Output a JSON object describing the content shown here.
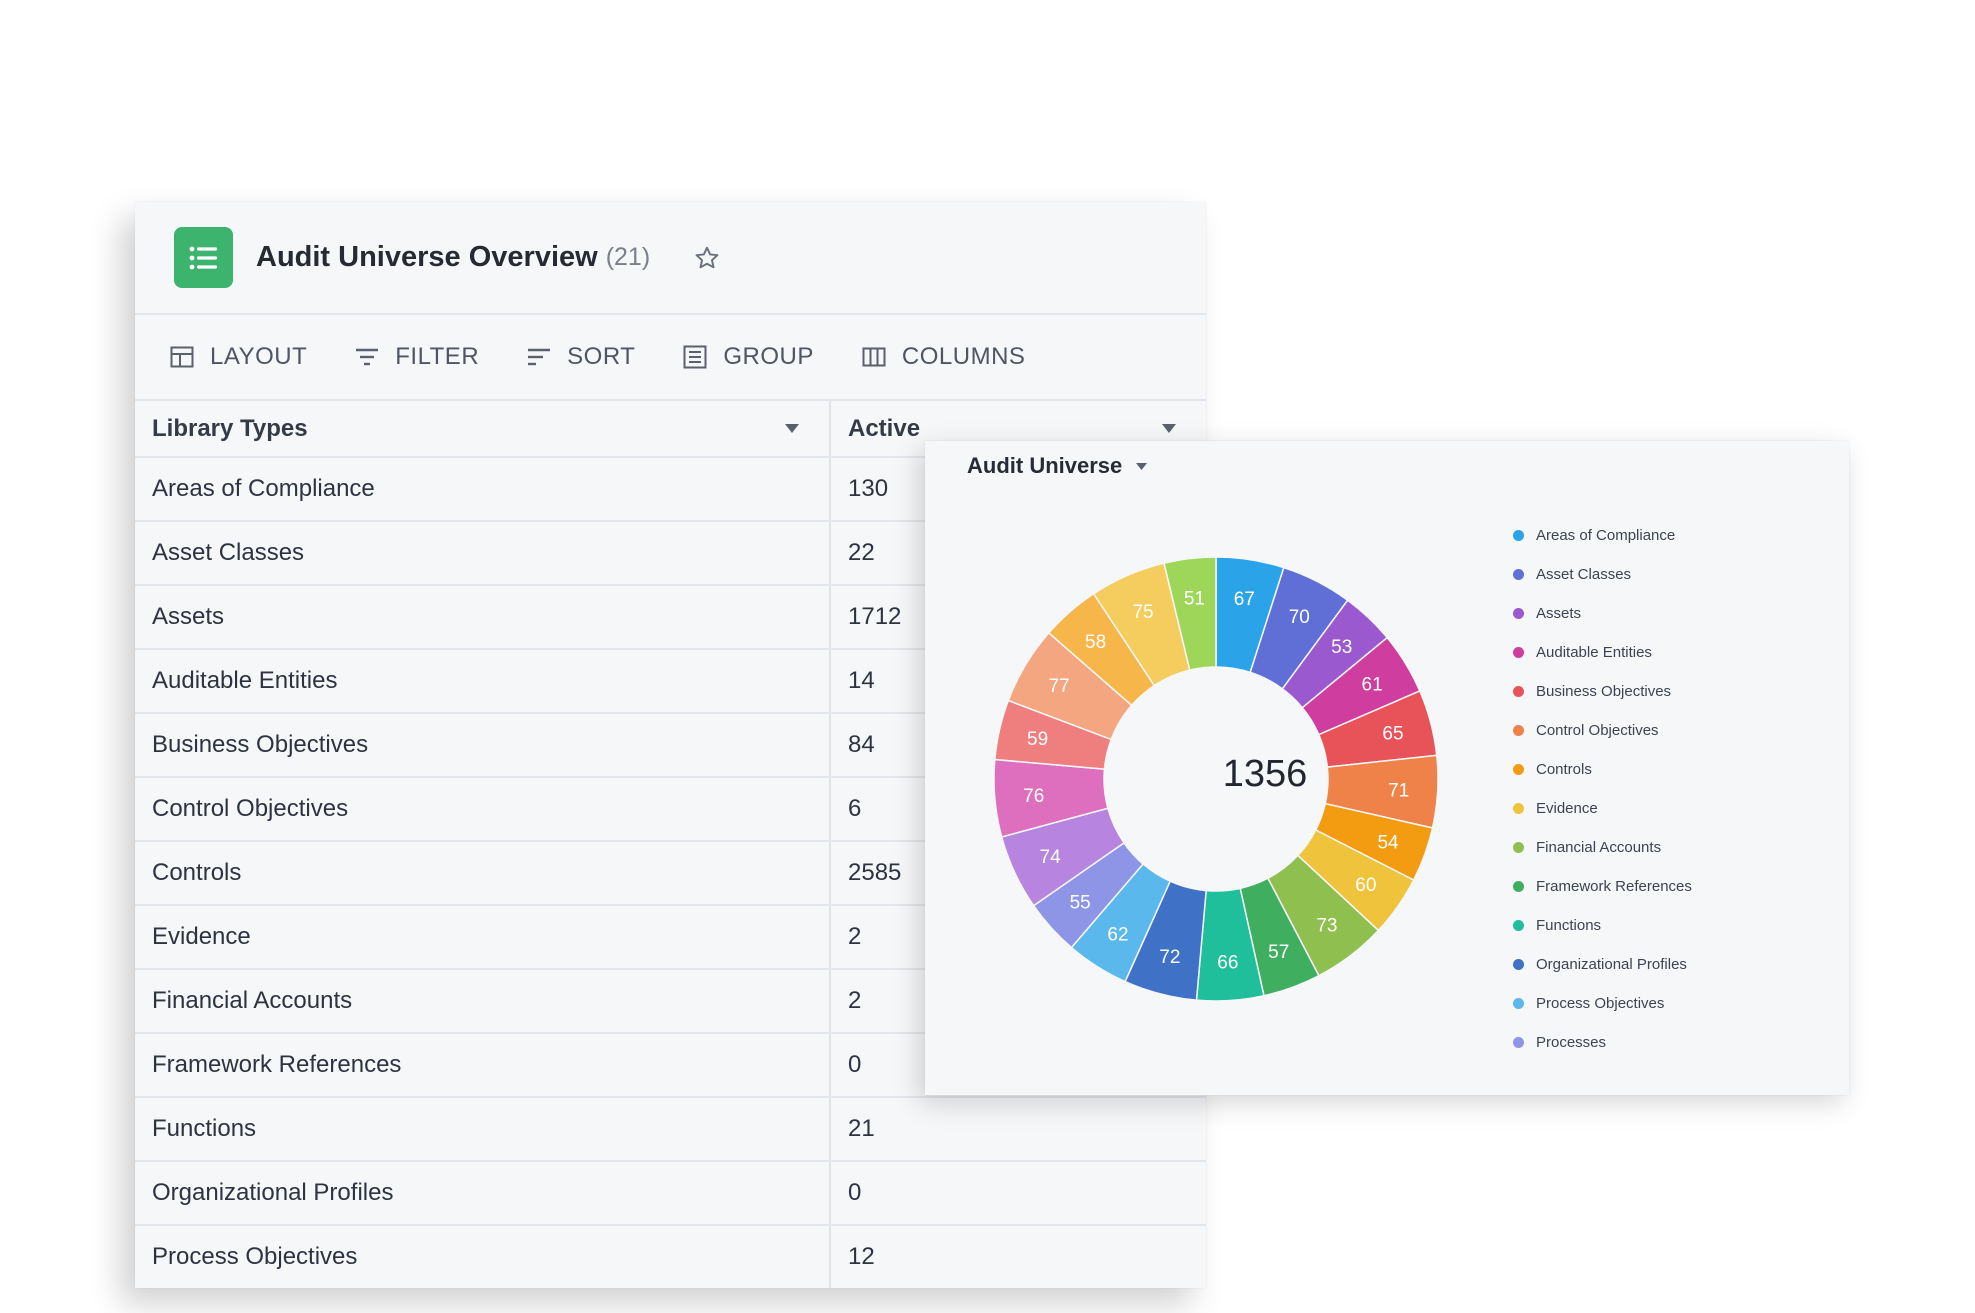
{
  "header": {
    "title": "Audit Universe Overview",
    "count": "(21)"
  },
  "toolbar": {
    "layout": "LAYOUT",
    "filter": "FILTER",
    "sort": "SORT",
    "group": "GROUP",
    "columns": "COLUMNS"
  },
  "table": {
    "columns": [
      "Library Types",
      "Active"
    ],
    "rows": [
      {
        "type": "Areas of Compliance",
        "active": "130"
      },
      {
        "type": "Asset Classes",
        "active": "22"
      },
      {
        "type": "Assets",
        "active": "1712"
      },
      {
        "type": "Auditable Entities",
        "active": "14"
      },
      {
        "type": "Business Objectives",
        "active": "84"
      },
      {
        "type": "Control Objectives",
        "active": "6"
      },
      {
        "type": "Controls",
        "active": "2585"
      },
      {
        "type": "Evidence",
        "active": "2"
      },
      {
        "type": "Financial Accounts",
        "active": "2"
      },
      {
        "type": "Framework References",
        "active": "0"
      },
      {
        "type": "Functions",
        "active": "21"
      },
      {
        "type": "Organizational Profiles",
        "active": "0"
      },
      {
        "type": "Process Objectives",
        "active": "12"
      }
    ]
  },
  "chart_card": {
    "title": "Audit Universe",
    "total": "1356"
  },
  "chart_data": {
    "type": "pie",
    "donut": true,
    "values": [
      67,
      70,
      53,
      61,
      65,
      71,
      54,
      60,
      73,
      57,
      66,
      72,
      62,
      55,
      74,
      76,
      59,
      77,
      58,
      75,
      51
    ],
    "colors": [
      "#2aa3e8",
      "#5f6fd6",
      "#9b59cf",
      "#cf3d9f",
      "#e8535a",
      "#ef8249",
      "#f39c12",
      "#f0c33c",
      "#8fbf4f",
      "#3fae5f",
      "#1fbf9c",
      "#3f72c7",
      "#5bb8ec",
      "#8f95e6",
      "#b784df",
      "#dd6fbe",
      "#ef7f7e",
      "#f3a67f",
      "#f6b64a",
      "#f5cc5e",
      "#9ed65a"
    ],
    "legend": [
      {
        "label": "Areas of Compliance",
        "color": "#2aa3e8"
      },
      {
        "label": "Asset Classes",
        "color": "#5f6fd6"
      },
      {
        "label": "Assets",
        "color": "#9b59cf"
      },
      {
        "label": "Auditable Entities",
        "color": "#cf3d9f"
      },
      {
        "label": "Business Objectives",
        "color": "#e8535a"
      },
      {
        "label": "Control Objectives",
        "color": "#ef8249"
      },
      {
        "label": "Controls",
        "color": "#f39c12"
      },
      {
        "label": "Evidence",
        "color": "#f0c33c"
      },
      {
        "label": "Financial Accounts",
        "color": "#8fbf4f"
      },
      {
        "label": "Framework References",
        "color": "#3fae5f"
      },
      {
        "label": "Functions",
        "color": "#1fbf9c"
      },
      {
        "label": "Organizational Profiles",
        "color": "#3f72c7"
      },
      {
        "label": "Process Objectives",
        "color": "#5bb8ec"
      },
      {
        "label": "Processes",
        "color": "#8f95e6"
      }
    ],
    "legend_position": "right"
  }
}
